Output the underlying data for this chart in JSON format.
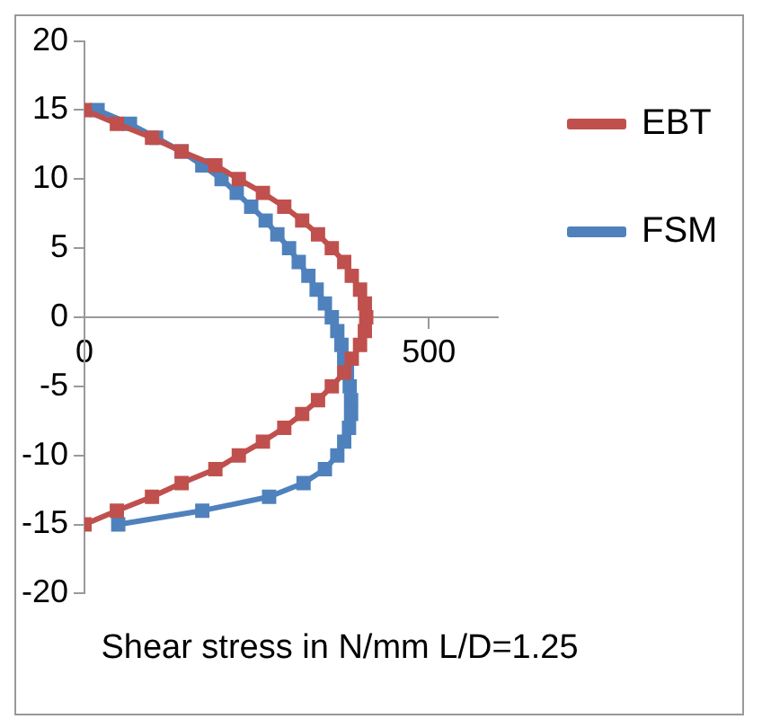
{
  "chart_data": {
    "type": "line",
    "xlabel": "Shear stress in N/mm L/D=1.25",
    "xlim": [
      0,
      600
    ],
    "xticks": [
      0,
      500
    ],
    "ylim": [
      -20,
      20
    ],
    "yticks": [
      -20,
      -15,
      -10,
      -5,
      0,
      5,
      10,
      15,
      20
    ],
    "grid": false,
    "legend": "right",
    "marker": "square",
    "line_style": "solid",
    "series": [
      {
        "name": "EBT",
        "color": "#c0504d",
        "x": [
          0,
          47,
          98,
          141,
          190,
          224,
          259,
          290,
          316,
          339,
          359,
          377,
          388,
          400,
          407,
          409,
          407,
          400,
          388,
          377,
          359,
          339,
          316,
          290,
          259,
          224,
          190,
          141,
          98,
          47,
          0
        ],
        "values": [
          15,
          14,
          13,
          12,
          11,
          10,
          9,
          8,
          7,
          6,
          5,
          4,
          3,
          2,
          1,
          0,
          -1,
          -2,
          -3,
          -4,
          -5,
          -6,
          -7,
          -8,
          -9,
          -10,
          -11,
          -12,
          -13,
          -14,
          -15
        ]
      },
      {
        "name": "FSM",
        "color": "#4f81bd",
        "x": [
          19,
          66,
          104,
          141,
          171,
          199,
          221,
          242,
          263,
          280,
          297,
          311,
          325,
          337,
          349,
          359,
          367,
          373,
          377,
          381,
          385,
          387,
          387,
          384,
          377,
          367,
          349,
          318,
          268,
          171,
          49
        ],
        "values": [
          15,
          14,
          13,
          12,
          11,
          10,
          9,
          8,
          7,
          6,
          5,
          4,
          3,
          2,
          1,
          0,
          -1,
          -2,
          -3,
          -4,
          -5,
          -6,
          -7,
          -8,
          -9,
          -10,
          -11,
          -12,
          -13,
          -14,
          -15
        ]
      }
    ]
  }
}
